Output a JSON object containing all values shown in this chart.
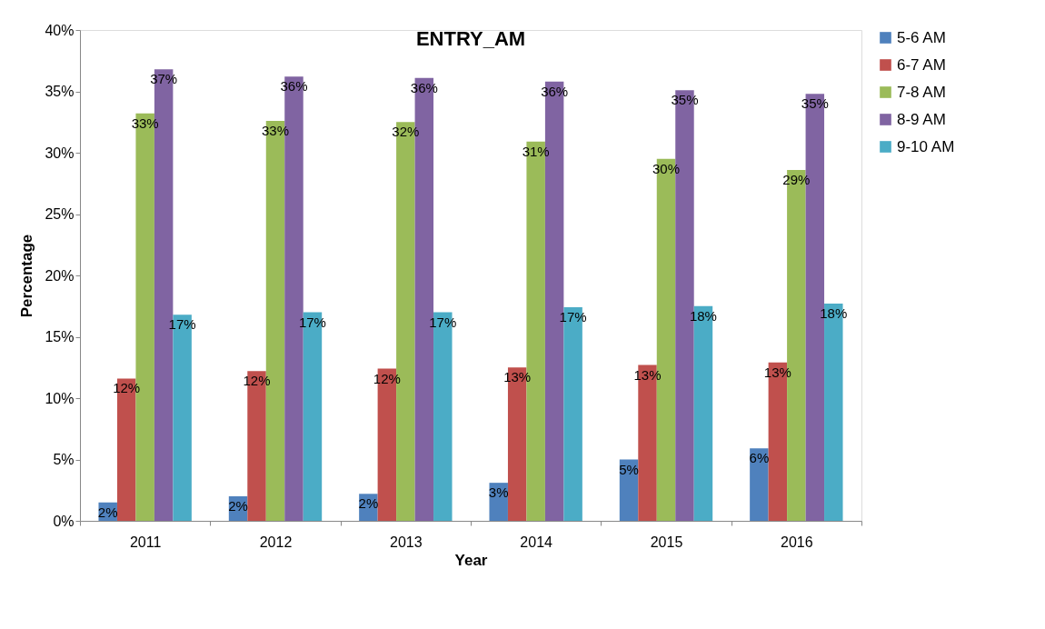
{
  "chart_data": {
    "type": "bar",
    "title": "ENTRY_AM",
    "xlabel": "Year",
    "ylabel": "Percentage",
    "categories": [
      "2011",
      "2012",
      "2013",
      "2014",
      "2015",
      "2016"
    ],
    "series": [
      {
        "name": "5-6 AM",
        "color": "#4f81bd",
        "values": [
          1.5,
          2.0,
          2.2,
          3.1,
          5.0,
          5.9
        ],
        "value_labels": [
          "2%",
          "2%",
          "2%",
          "3%",
          "5%",
          "6%"
        ]
      },
      {
        "name": "6-7 AM",
        "color": "#c0504d",
        "values": [
          11.6,
          12.2,
          12.4,
          12.5,
          12.7,
          12.9
        ],
        "value_labels": [
          "12%",
          "12%",
          "12%",
          "13%",
          "13%",
          "13%"
        ]
      },
      {
        "name": "7-8 AM",
        "color": "#9bbb59",
        "values": [
          33.2,
          32.6,
          32.5,
          30.9,
          29.5,
          28.6
        ],
        "value_labels": [
          "33%",
          "33%",
          "32%",
          "31%",
          "30%",
          "29%"
        ]
      },
      {
        "name": "8-9 AM",
        "color": "#8064a2",
        "values": [
          36.8,
          36.2,
          36.1,
          35.8,
          35.1,
          34.8
        ],
        "value_labels": [
          "37%",
          "36%",
          "36%",
          "36%",
          "35%",
          "35%"
        ]
      },
      {
        "name": "9-10 AM",
        "color": "#4bacc6",
        "values": [
          16.8,
          17.0,
          17.0,
          17.4,
          17.5,
          17.7
        ],
        "value_labels": [
          "17%",
          "17%",
          "17%",
          "17%",
          "18%",
          "18%"
        ]
      }
    ],
    "ylim": [
      0,
      40
    ],
    "yticks": [
      {
        "value": 0,
        "label": "0%"
      },
      {
        "value": 5,
        "label": "5%"
      },
      {
        "value": 10,
        "label": "10%"
      },
      {
        "value": 15,
        "label": "15%"
      },
      {
        "value": 20,
        "label": "20%"
      },
      {
        "value": 25,
        "label": "25%"
      },
      {
        "value": 30,
        "label": "30%"
      },
      {
        "value": 35,
        "label": "35%"
      },
      {
        "value": 40,
        "label": "40%"
      }
    ],
    "grid": false,
    "legend": "right"
  }
}
